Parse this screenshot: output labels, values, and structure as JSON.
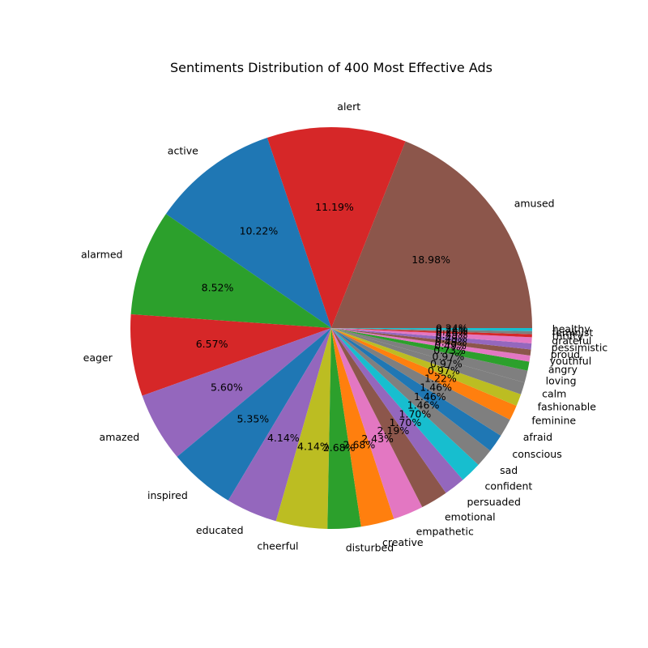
{
  "chart_data": {
    "type": "pie",
    "title": "Sentiments Distribution of 400 Most Effective Ads",
    "start_angle_deg": 0,
    "direction": "counterclockwise",
    "autopct_format": "{:.2f}%",
    "slices": [
      {
        "label": "amused",
        "count": 78,
        "color": "#8c564b"
      },
      {
        "label": "alert",
        "count": 46,
        "color": "#d62728"
      },
      {
        "label": "active",
        "count": 42,
        "color": "#1f77b4"
      },
      {
        "label": "alarmed",
        "count": 35,
        "color": "#2ca02c"
      },
      {
        "label": "eager",
        "count": 27,
        "color": "#d62728"
      },
      {
        "label": "amazed",
        "count": 23,
        "color": "#9467bd"
      },
      {
        "label": "inspired",
        "count": 22,
        "color": "#1f77b4"
      },
      {
        "label": "educated",
        "count": 17,
        "color": "#9467bd"
      },
      {
        "label": "cheerful",
        "count": 17,
        "color": "#bcbd22"
      },
      {
        "label": "disturbed",
        "count": 11,
        "color": "#2ca02c"
      },
      {
        "label": "creative",
        "count": 11,
        "color": "#ff7f0e"
      },
      {
        "label": "empathetic",
        "count": 10,
        "color": "#e377c2"
      },
      {
        "label": "emotional",
        "count": 9,
        "color": "#8c564b"
      },
      {
        "label": "persuaded",
        "count": 7,
        "color": "#9467bd"
      },
      {
        "label": "confident",
        "count": 7,
        "color": "#17becf"
      },
      {
        "label": "sad",
        "count": 6,
        "color": "#7f7f7f"
      },
      {
        "label": "conscious",
        "count": 6,
        "color": "#1f77b4"
      },
      {
        "label": "afraid",
        "count": 6,
        "color": "#7f7f7f"
      },
      {
        "label": "feminine",
        "count": 5,
        "color": "#ff7f0e"
      },
      {
        "label": "fashionable",
        "count": 4,
        "color": "#bcbd22"
      },
      {
        "label": "calm",
        "count": 4,
        "color": "#7f7f7f"
      },
      {
        "label": "loving",
        "count": 4,
        "color": "#7f7f7f"
      },
      {
        "label": "angry",
        "count": 3,
        "color": "#2ca02c"
      },
      {
        "label": "youthful",
        "count": 2,
        "color": "#e377c2"
      },
      {
        "label": "proud",
        "count": 2,
        "color": "#8c564b"
      },
      {
        "label": "pessimistic",
        "count": 2,
        "color": "#9467bd"
      },
      {
        "label": "grateful",
        "count": 2,
        "color": "#e377c2"
      },
      {
        "label": "thrifty",
        "count": 1,
        "color": "#d62728"
      },
      {
        "label": "feminist",
        "count": 1,
        "color": "#7f7f7f"
      },
      {
        "label": "healthy",
        "count": 1,
        "color": "#17becf"
      }
    ]
  }
}
